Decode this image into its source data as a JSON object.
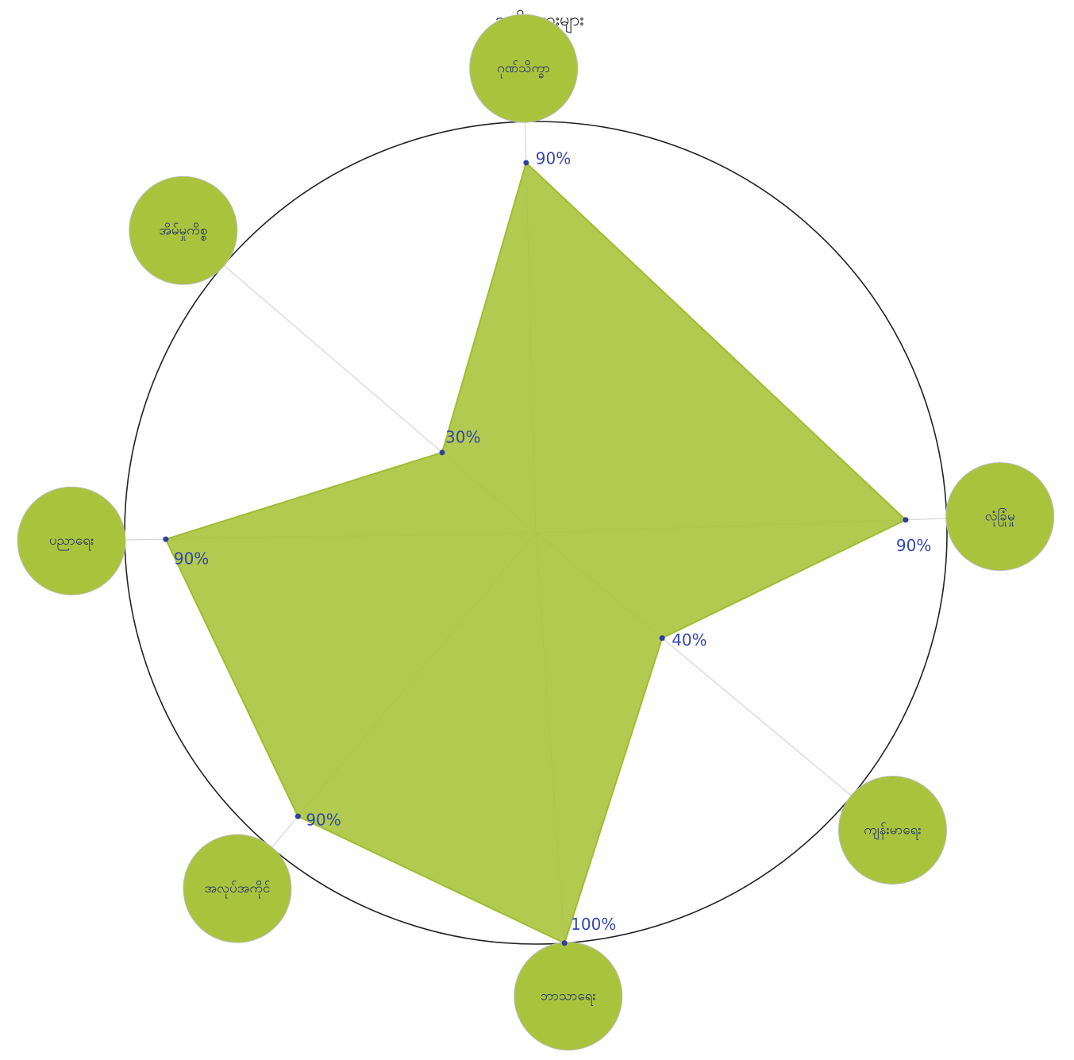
{
  "chart_data": {
    "type": "radar",
    "title": "အမျိုးသားများ",
    "categories": [
      "ဂုဏ်သိက္ခာ",
      "လုံခြုံမှု",
      "ကျန်းမာရေး",
      "ဘာသာရေး",
      "အလုပ်အကိုင်",
      "ပညာရေး",
      "အိမ်မှုကိစ္စ"
    ],
    "values": [
      90,
      90,
      40,
      100,
      90,
      90,
      30
    ],
    "value_labels": [
      "90%",
      "90%",
      "40%",
      "100%",
      "90%",
      "90%",
      "30%"
    ],
    "color": "#a9c43c",
    "ylim": [
      0,
      100
    ]
  }
}
